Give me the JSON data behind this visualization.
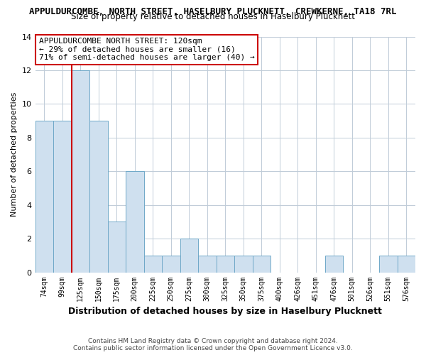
{
  "title_line1": "APPULDURCOMBE, NORTH STREET, HASELBURY PLUCKNETT, CREWKERNE, TA18 7RL",
  "title_line2": "Size of property relative to detached houses in Haselbury Plucknett",
  "xlabel": "Distribution of detached houses by size in Haselbury Plucknett",
  "ylabel": "Number of detached properties",
  "footer_line1": "Contains HM Land Registry data © Crown copyright and database right 2024.",
  "footer_line2": "Contains public sector information licensed under the Open Government Licence v3.0.",
  "bin_labels": [
    "74sqm",
    "99sqm",
    "125sqm",
    "150sqm",
    "175sqm",
    "200sqm",
    "225sqm",
    "250sqm",
    "275sqm",
    "300sqm",
    "325sqm",
    "350sqm",
    "375sqm",
    "400sqm",
    "426sqm",
    "451sqm",
    "476sqm",
    "501sqm",
    "526sqm",
    "551sqm",
    "576sqm"
  ],
  "bar_values": [
    9,
    9,
    12,
    9,
    3,
    6,
    1,
    1,
    2,
    1,
    1,
    1,
    1,
    0,
    0,
    0,
    1,
    0,
    0,
    1,
    1
  ],
  "bar_color": "#cfe0ef",
  "bar_edge_color": "#6fa8c8",
  "vline_x_index": 2,
  "vline_color": "#cc0000",
  "ylim": [
    0,
    14
  ],
  "yticks": [
    0,
    2,
    4,
    6,
    8,
    10,
    12,
    14
  ],
  "annotation_text_line1": "APPULDURCOMBE NORTH STREET: 120sqm",
  "annotation_text_line2": "← 29% of detached houses are smaller (16)",
  "annotation_text_line3": "71% of semi-detached houses are larger (40) →",
  "annotation_box_facecolor": "#ffffff",
  "annotation_box_edgecolor": "#cc0000",
  "bg_color": "#ffffff",
  "plot_bg_color": "#ffffff",
  "grid_color": "#c0ccd8",
  "title1_fontsize": 9,
  "title2_fontsize": 8.5,
  "xlabel_fontsize": 9,
  "ylabel_fontsize": 8
}
